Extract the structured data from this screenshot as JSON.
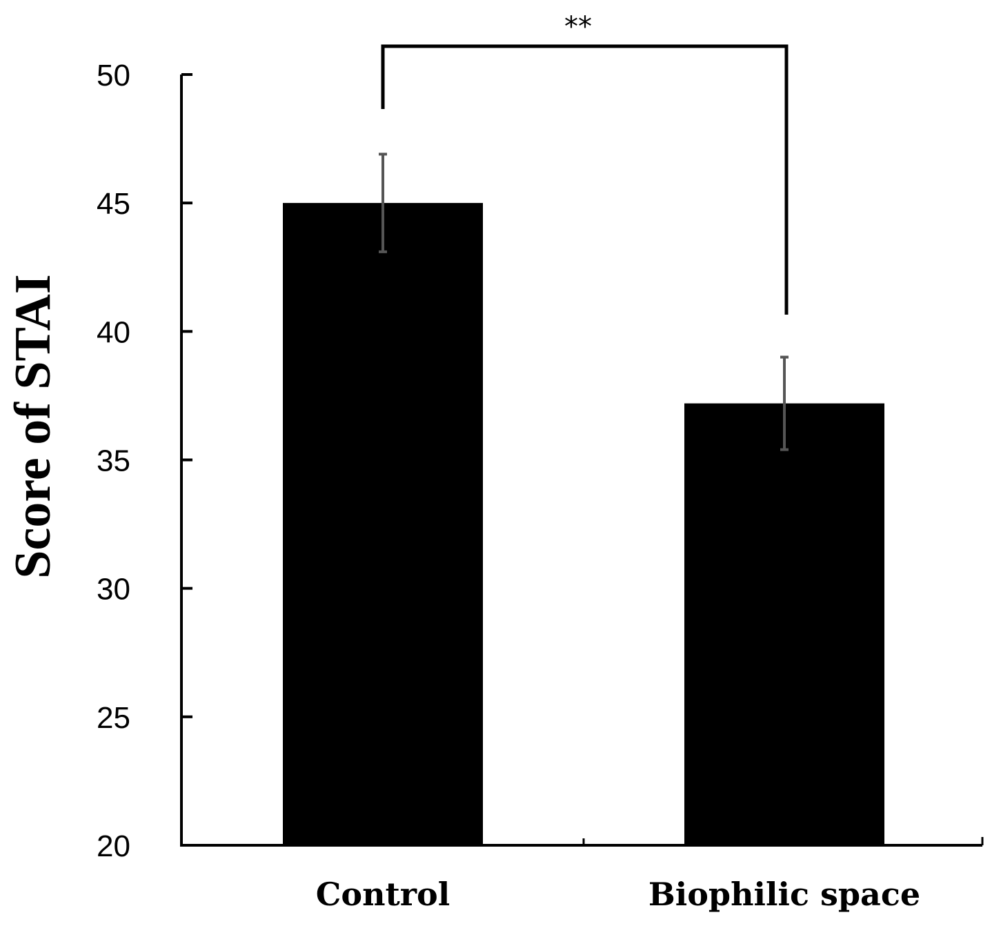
{
  "chart_data": {
    "type": "bar",
    "categories": [
      "Control",
      "Biophilic space"
    ],
    "values": [
      45.0,
      37.2
    ],
    "errors": [
      1.9,
      1.8
    ],
    "ylabel": "Score of STAI",
    "xlabel": "",
    "ylim": [
      20,
      50
    ],
    "yticks": [
      20,
      25,
      30,
      35,
      40,
      45,
      50
    ],
    "grid": false,
    "significance": {
      "between": [
        0,
        1
      ],
      "label": "**"
    },
    "colors": {
      "bar": "#000000",
      "error_bar": "#555555",
      "axis": "#000000"
    }
  }
}
